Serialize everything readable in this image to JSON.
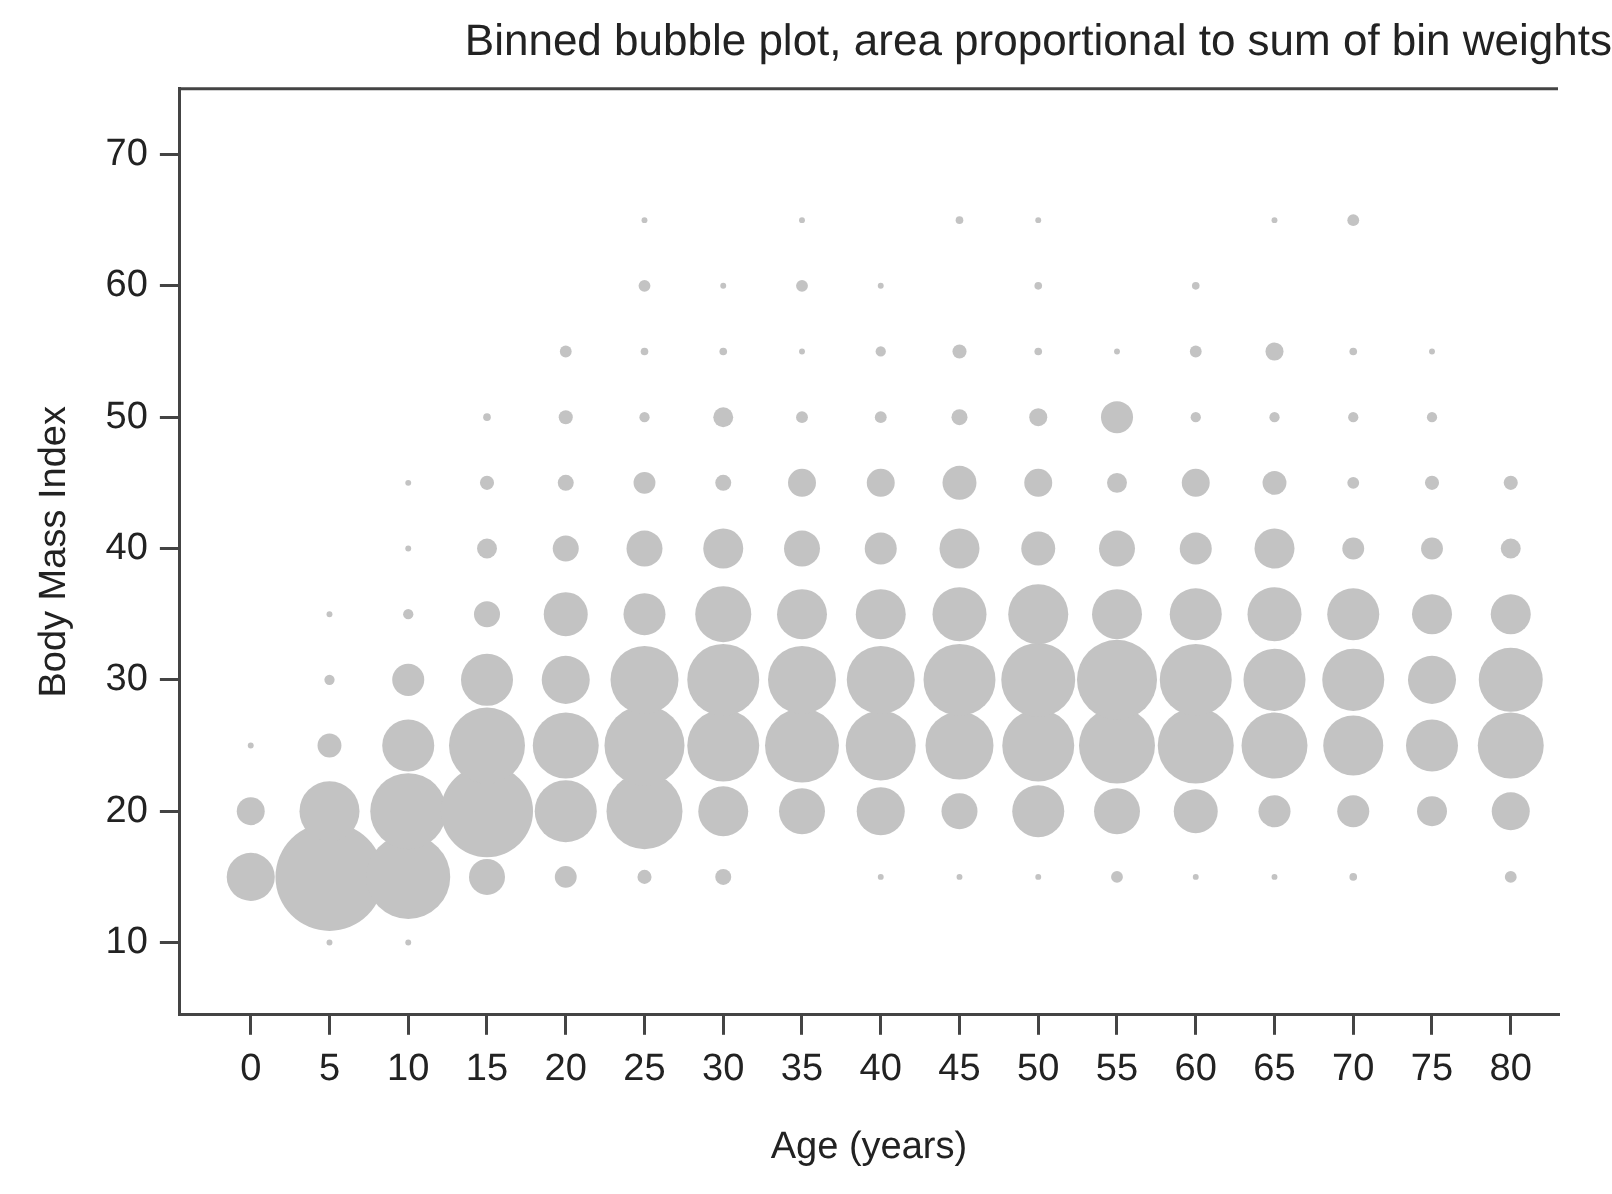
{
  "chart_data": {
    "type": "bubble",
    "title": "Binned bubble plot, area proportional to sum of bin weights",
    "xlabel": "Age (years)",
    "ylabel": "Body Mass Index",
    "xlim": [
      -4.5,
      83
    ],
    "xticks": [
      0,
      5,
      10,
      15,
      20,
      25,
      30,
      35,
      40,
      45,
      50,
      55,
      60,
      65,
      70,
      75,
      80
    ],
    "ylim": [
      4.5,
      75
    ],
    "yticks": [
      10,
      20,
      30,
      40,
      50,
      60,
      70
    ],
    "series": [
      {
        "color": "#c3c3c3",
        "x": [
          0,
          0,
          0,
          5,
          5,
          5,
          5,
          5,
          5,
          10,
          10,
          10,
          10,
          10,
          10,
          10,
          10,
          15,
          15,
          15,
          15,
          15,
          15,
          15,
          15,
          20,
          20,
          20,
          20,
          20,
          20,
          20,
          20,
          20,
          25,
          25,
          25,
          25,
          25,
          25,
          25,
          25,
          25,
          25,
          25,
          30,
          30,
          30,
          30,
          30,
          30,
          30,
          30,
          30,
          30,
          35,
          35,
          35,
          35,
          35,
          35,
          35,
          35,
          35,
          35,
          40,
          40,
          40,
          40,
          40,
          40,
          40,
          40,
          40,
          40,
          45,
          45,
          45,
          45,
          45,
          45,
          45,
          45,
          45,
          45,
          50,
          50,
          50,
          50,
          50,
          50,
          50,
          50,
          50,
          50,
          50,
          55,
          55,
          55,
          55,
          55,
          55,
          55,
          55,
          55,
          60,
          60,
          60,
          60,
          60,
          60,
          60,
          60,
          60,
          60,
          65,
          65,
          65,
          65,
          65,
          65,
          65,
          65,
          65,
          65,
          70,
          70,
          70,
          70,
          70,
          70,
          70,
          70,
          70,
          70,
          75,
          75,
          75,
          75,
          75,
          75,
          75,
          75,
          80,
          80,
          80,
          80,
          80,
          80,
          80
        ],
        "values": [
          15,
          20,
          25,
          10,
          15,
          20,
          25,
          30,
          35,
          10,
          15,
          20,
          25,
          30,
          35,
          40,
          45,
          15,
          20,
          25,
          30,
          35,
          40,
          45,
          50,
          15,
          20,
          25,
          30,
          35,
          40,
          45,
          50,
          55,
          15,
          20,
          25,
          30,
          35,
          40,
          45,
          50,
          55,
          60,
          65,
          15,
          20,
          25,
          30,
          35,
          40,
          45,
          50,
          55,
          60,
          20,
          25,
          30,
          35,
          40,
          45,
          50,
          55,
          60,
          65,
          15,
          20,
          25,
          30,
          35,
          40,
          45,
          50,
          55,
          60,
          15,
          20,
          25,
          30,
          35,
          40,
          45,
          50,
          55,
          65,
          15,
          20,
          25,
          30,
          35,
          40,
          45,
          50,
          55,
          60,
          65,
          15,
          20,
          25,
          30,
          35,
          40,
          45,
          50,
          55,
          15,
          20,
          25,
          30,
          35,
          40,
          45,
          50,
          55,
          60,
          15,
          20,
          25,
          30,
          35,
          40,
          45,
          50,
          55,
          65,
          15,
          20,
          25,
          30,
          35,
          40,
          45,
          50,
          55,
          65,
          20,
          25,
          30,
          35,
          40,
          45,
          50,
          55,
          15,
          20,
          25,
          30,
          35,
          40,
          45
        ],
        "sizes": [
          0.198,
          0.067,
          0.003,
          0.003,
          1,
          0.309,
          0.049,
          0.009,
          0.003,
          0.003,
          0.605,
          0.495,
          0.232,
          0.088,
          0.009,
          0.003,
          0.003,
          0.111,
          0.726,
          0.495,
          0.232,
          0.058,
          0.034,
          0.017,
          0.005,
          0.041,
          0.33,
          0.373,
          0.198,
          0.166,
          0.058,
          0.022,
          0.017,
          0.012,
          0.017,
          0.495,
          0.549,
          0.396,
          0.151,
          0.111,
          0.041,
          0.009,
          0.005,
          0.012,
          0.003,
          0.022,
          0.214,
          0.444,
          0.444,
          0.269,
          0.137,
          0.022,
          0.034,
          0.005,
          0.003,
          0.181,
          0.469,
          0.396,
          0.214,
          0.111,
          0.067,
          0.012,
          0.003,
          0.012,
          0.003,
          0.003,
          0.198,
          0.42,
          0.396,
          0.214,
          0.088,
          0.067,
          0.012,
          0.009,
          0.003,
          0.003,
          0.111,
          0.396,
          0.444,
          0.25,
          0.137,
          0.099,
          0.022,
          0.017,
          0.005,
          0.003,
          0.232,
          0.444,
          0.469,
          0.309,
          0.099,
          0.067,
          0.028,
          0.005,
          0.005,
          0.003,
          0.012,
          0.181,
          0.495,
          0.549,
          0.214,
          0.111,
          0.034,
          0.088,
          0.003,
          0.003,
          0.166,
          0.495,
          0.444,
          0.232,
          0.088,
          0.067,
          0.009,
          0.012,
          0.005,
          0.003,
          0.088,
          0.373,
          0.33,
          0.25,
          0.137,
          0.049,
          0.009,
          0.028,
          0.003,
          0.005,
          0.088,
          0.309,
          0.33,
          0.232,
          0.041,
          0.012,
          0.009,
          0.005,
          0.012,
          0.077,
          0.232,
          0.198,
          0.137,
          0.041,
          0.017,
          0.009,
          0.003,
          0.012,
          0.124,
          0.373,
          0.351,
          0.137,
          0.034,
          0.017
        ]
      }
    ]
  }
}
